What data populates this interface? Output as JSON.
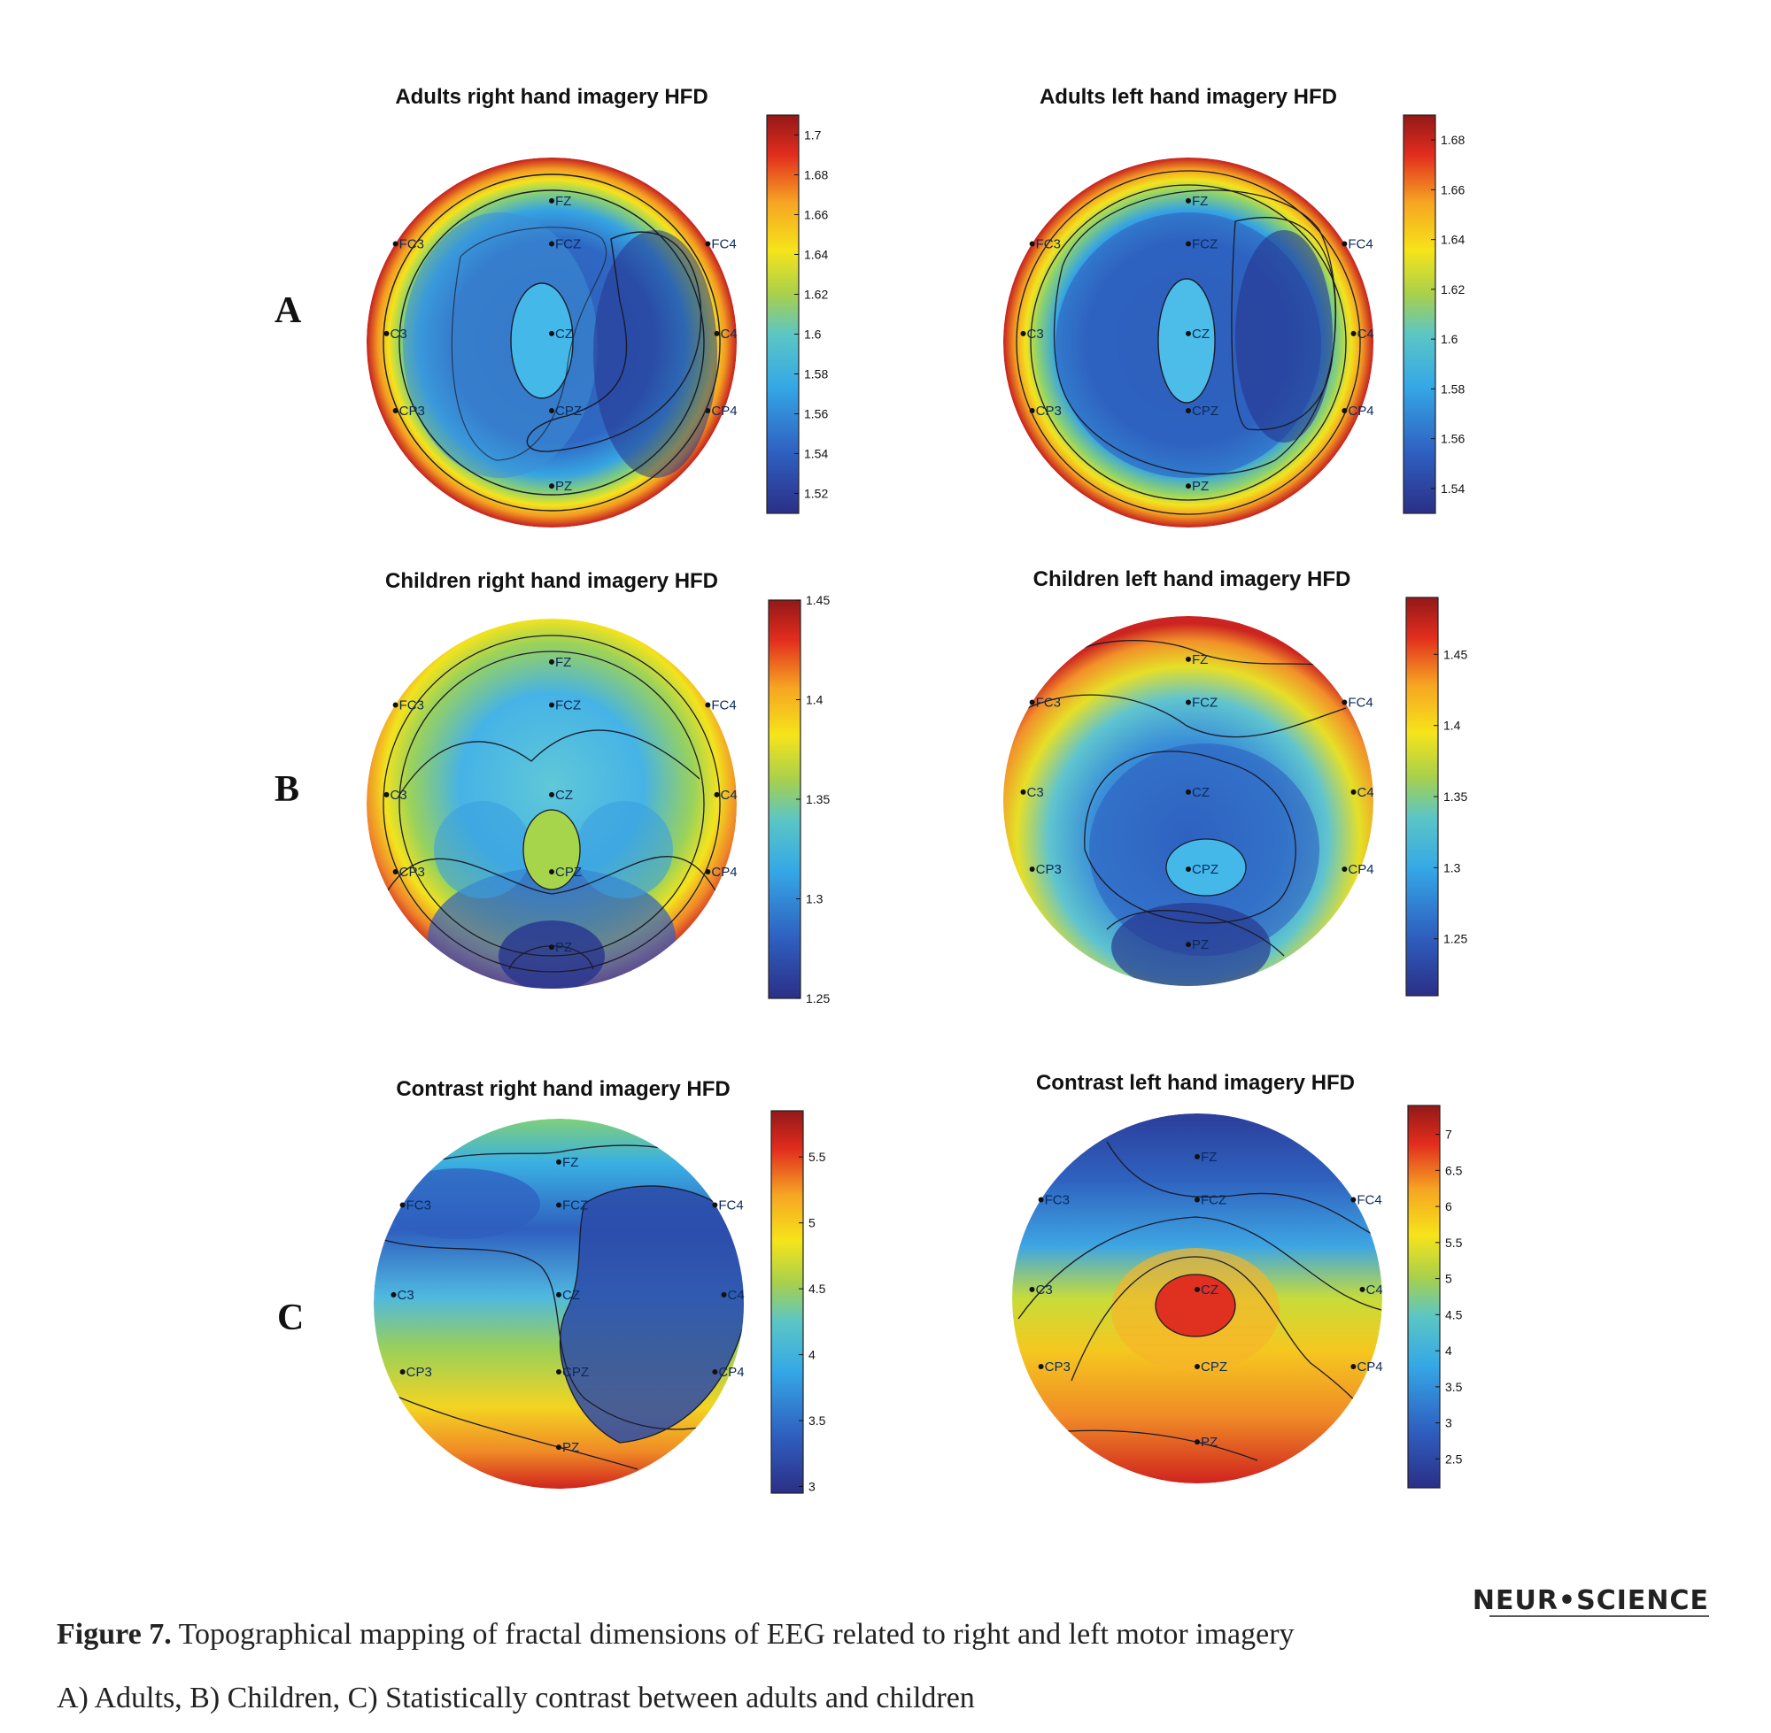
{
  "rows": [
    {
      "letter": "A"
    },
    {
      "letter": "B"
    },
    {
      "letter": "C"
    }
  ],
  "chart_data": [
    {
      "type": "heatmap",
      "title": "Adults right hand imagery HFD",
      "row": "A",
      "colorbar_ticks": [
        "1.52",
        "1.54",
        "1.56",
        "1.58",
        "1.6",
        "1.62",
        "1.64",
        "1.66",
        "1.68",
        "1.7"
      ],
      "colorbar_range": [
        1.51,
        1.71
      ],
      "electrodes": [
        "FZ",
        "FC3",
        "FCZ",
        "FC4",
        "C3",
        "CZ",
        "C4",
        "CP3",
        "CPZ",
        "CP4",
        "PZ"
      ]
    },
    {
      "type": "heatmap",
      "title": "Adults left hand imagery HFD",
      "row": "A",
      "colorbar_ticks": [
        "1.54",
        "1.56",
        "1.58",
        "1.6",
        "1.62",
        "1.64",
        "1.66",
        "1.68"
      ],
      "colorbar_range": [
        1.53,
        1.69
      ],
      "electrodes": [
        "FZ",
        "FC3",
        "FCZ",
        "FC4",
        "C3",
        "CZ",
        "C4",
        "CP3",
        "CPZ",
        "CP4",
        "PZ"
      ]
    },
    {
      "type": "heatmap",
      "title": "Children right hand imagery HFD",
      "row": "B",
      "colorbar_ticks": [
        "1.25",
        "1.3",
        "1.35",
        "1.4",
        "1.45"
      ],
      "colorbar_range": [
        1.25,
        1.45
      ],
      "electrodes": [
        "FZ",
        "FC3",
        "FCZ",
        "FC4",
        "C3",
        "CZ",
        "C4",
        "CP3",
        "CPZ",
        "CP4",
        "PZ"
      ]
    },
    {
      "type": "heatmap",
      "title": "Children left hand imagery HFD",
      "row": "B",
      "colorbar_ticks": [
        "1.25",
        "1.3",
        "1.35",
        "1.4",
        "1.45"
      ],
      "colorbar_range": [
        1.21,
        1.49
      ],
      "electrodes": [
        "FZ",
        "FC3",
        "FCZ",
        "FC4",
        "C3",
        "CZ",
        "C4",
        "CP3",
        "CPZ",
        "CP4",
        "PZ"
      ]
    },
    {
      "type": "heatmap",
      "title": "Contrast right hand imagery HFD",
      "row": "C",
      "colorbar_ticks": [
        "3",
        "3.5",
        "4",
        "4.5",
        "5",
        "5.5"
      ],
      "colorbar_range": [
        2.95,
        5.85
      ],
      "electrodes": [
        "FZ",
        "FC3",
        "FCZ",
        "FC4",
        "C3",
        "CZ",
        "C4",
        "CP3",
        "CPZ",
        "CP4",
        "PZ"
      ]
    },
    {
      "type": "heatmap",
      "title": "Contrast left hand imagery HFD",
      "row": "C",
      "colorbar_ticks": [
        "2.5",
        "3",
        "3.5",
        "4",
        "4.5",
        "5",
        "5.5",
        "6",
        "6.5",
        "7"
      ],
      "colorbar_range": [
        2.1,
        7.4
      ],
      "electrodes": [
        "FZ",
        "FC3",
        "FCZ",
        "FC4",
        "C3",
        "CZ",
        "C4",
        "CP3",
        "CPZ",
        "CP4",
        "PZ"
      ]
    }
  ],
  "brand": "NEUR•SCIENCE",
  "caption": {
    "label": "Figure 7.",
    "line1": " Topographical mapping of fractal dimensions of EEG related to right and left motor imagery",
    "line2": "A) Adults, B) Children, C) Statistically contrast between adults and children"
  }
}
